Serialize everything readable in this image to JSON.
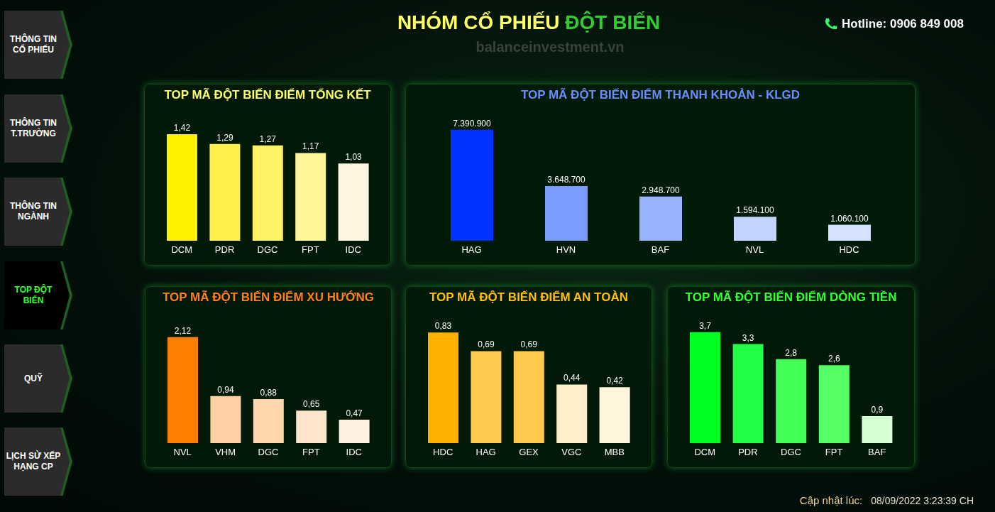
{
  "header": {
    "title_part1": "NHÓM CỔ PHIẾU",
    "title_part2": "ĐỘT BIẾN",
    "watermark": "balanceinvestment.vn",
    "hotline": "Hotline: 0906 849 008"
  },
  "sidebar": [
    {
      "lines": [
        "THÔNG TIN",
        "CỔ PHIẾU"
      ],
      "active": false
    },
    {
      "lines": [
        "THÔNG TIN",
        "T.TRƯỜNG"
      ],
      "active": false
    },
    {
      "lines": [
        "THÔNG TIN",
        "NGÀNH"
      ],
      "active": false
    },
    {
      "lines": [
        "TOP ĐỘT",
        "BIẾN"
      ],
      "active": true
    },
    {
      "lines": [
        "QUỸ"
      ],
      "active": false
    },
    {
      "lines": [
        "LỊCH SỬ XẾP",
        "HẠNG CP"
      ],
      "active": false
    }
  ],
  "chart_data": [
    {
      "type": "bar",
      "title": "TOP MÃ ĐỘT BIẾN ĐIỂM TỔNG KẾT",
      "categories": [
        "DCM",
        "PDR",
        "DGC",
        "FPT",
        "IDC"
      ],
      "values": [
        1.42,
        1.29,
        1.27,
        1.17,
        1.03
      ],
      "value_labels": [
        "1,42",
        "1,29",
        "1,27",
        "1,17",
        "1,03"
      ],
      "colors": [
        "#fff200",
        "#fff04d",
        "#fff266",
        "#fff599",
        "#fff5e1"
      ],
      "ylim": [
        0,
        1.6
      ],
      "data_labels": true,
      "tick_labels": "x"
    },
    {
      "type": "bar",
      "title": "TOP MÃ ĐỘT BIẾN ĐIỂM THANH KHOẢN - KLGD",
      "categories": [
        "HAG",
        "HVN",
        "BAF",
        "NVL",
        "HDC"
      ],
      "values": [
        7390900,
        3648700,
        2948700,
        1594100,
        1060100
      ],
      "value_labels": [
        "7.390.900",
        "3.648.700",
        "2.948.700",
        "1.594.100",
        "1.060.100"
      ],
      "colors": [
        "#0033ff",
        "#7b9cff",
        "#99b3ff",
        "#c2d4ff",
        "#d4e2ff"
      ],
      "ylim": [
        0,
        8000000
      ],
      "data_labels": true,
      "tick_labels": "x"
    },
    {
      "type": "bar",
      "title": "TOP MÃ ĐỘT BIẾN ĐIỂM XU HƯỚNG",
      "categories": [
        "NVL",
        "VHM",
        "DGC",
        "FPT",
        "IDC"
      ],
      "values": [
        2.12,
        0.94,
        0.88,
        0.65,
        0.47
      ],
      "value_labels": [
        "2,12",
        "0,94",
        "0,88",
        "0,65",
        "0,47"
      ],
      "colors": [
        "#ff7f00",
        "#ffd0a3",
        "#ffd6ad",
        "#ffe4cc",
        "#fff0e0"
      ],
      "ylim": [
        0,
        2.4
      ],
      "data_labels": true,
      "tick_labels": "x"
    },
    {
      "type": "bar",
      "title": "TOP MÃ ĐỘT BIẾN ĐIỂM AN TOÀN",
      "categories": [
        "HDC",
        "HAG",
        "GEX",
        "VGC",
        "MBB"
      ],
      "values": [
        0.83,
        0.69,
        0.69,
        0.44,
        0.42
      ],
      "value_labels": [
        "0,83",
        "0,69",
        "0,69",
        "0,44",
        "0,42"
      ],
      "colors": [
        "#ffb000",
        "#ffc94d",
        "#ffc94d",
        "#fff0c9",
        "#fff5dc"
      ],
      "ylim": [
        0,
        0.9
      ],
      "data_labels": true,
      "tick_labels": "x"
    },
    {
      "type": "bar",
      "title": "TOP MÃ ĐỘT BIẾN ĐIỂM DÒNG TIỀN",
      "categories": [
        "DCM",
        "PDR",
        "DGC",
        "FPT",
        "BAF"
      ],
      "values": [
        3.7,
        3.3,
        2.8,
        2.6,
        0.9
      ],
      "value_labels": [
        "3,7",
        "3,3",
        "2,8",
        "2,6",
        "0,9"
      ],
      "colors": [
        "#00ff22",
        "#22ff44",
        "#44ff55",
        "#55ff66",
        "#d4ffd4"
      ],
      "ylim": [
        0,
        4
      ],
      "data_labels": true,
      "tick_labels": "x"
    }
  ],
  "footer": {
    "label": "Cập nhật lúc:",
    "timestamp": "08/09/2022 3:23:39 CH"
  }
}
